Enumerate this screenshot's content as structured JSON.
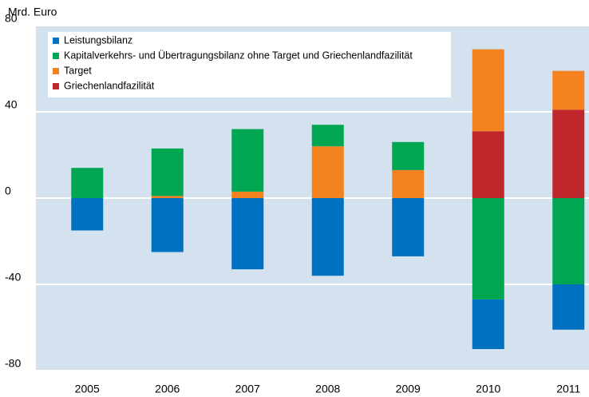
{
  "chart_data": {
    "type": "bar",
    "stacked": true,
    "y_label": "Mrd. Euro",
    "categories": [
      "2005",
      "2006",
      "2007",
      "2008",
      "2009",
      "2010",
      "2011"
    ],
    "series": [
      {
        "name": "Leistungsbilanz",
        "color": "#0070c0",
        "values": [
          -15,
          -25,
          -33,
          -36,
          -27,
          -23,
          -21
        ]
      },
      {
        "name": "Kapitalverkehrs- und Übertragungsbilanz ohne Target und Griechenlandfazilität",
        "color": "#00a651",
        "values": [
          14,
          22,
          29,
          10,
          13,
          -47,
          -40
        ]
      },
      {
        "name": "Target",
        "color": "#f58220",
        "values": [
          0,
          1,
          3,
          24,
          13,
          38,
          18
        ]
      },
      {
        "name": "Griechenlandfazilität",
        "color": "#c0272d",
        "values": [
          0,
          0,
          0,
          0,
          0,
          31,
          41
        ]
      }
    ],
    "ylim": [
      -80,
      80
    ],
    "yticks": [
      -80,
      -40,
      0,
      40,
      80
    ],
    "grid": true
  }
}
